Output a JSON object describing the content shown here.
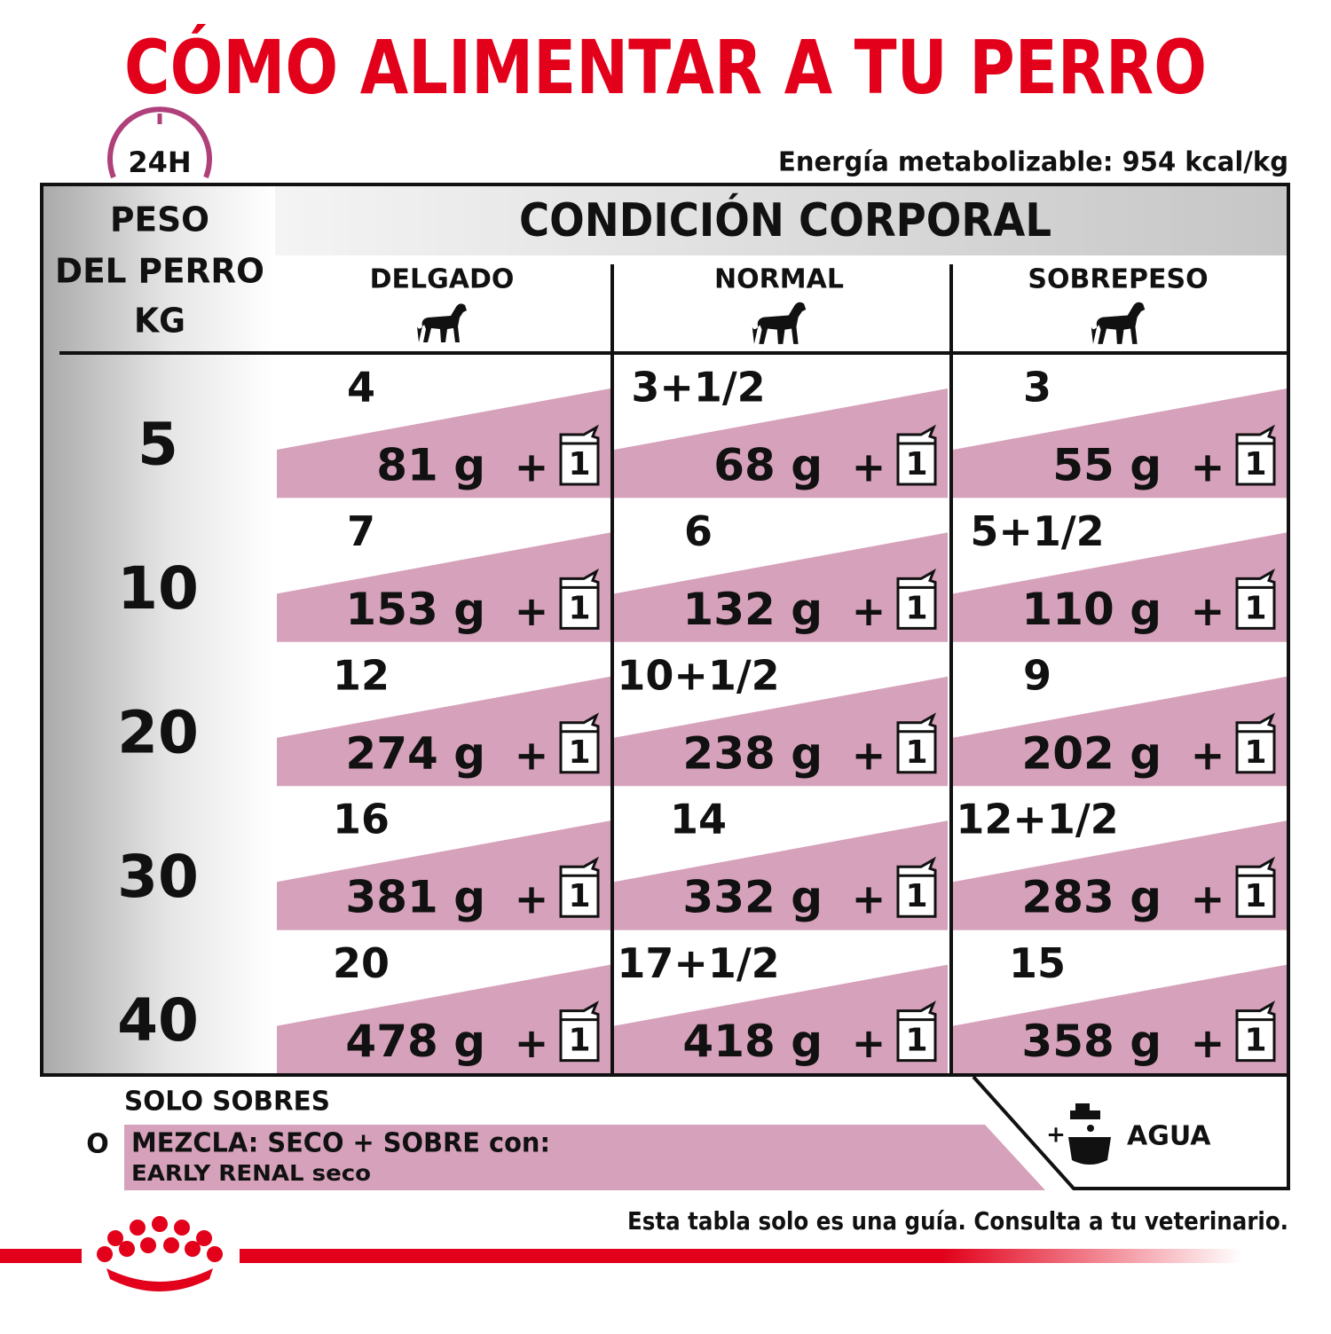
{
  "header": {
    "title": "CÓMO ALIMENTAR A TU PERRO",
    "badge": "24H",
    "energy": "Energía metabolizable: 954 kcal/kg"
  },
  "table": {
    "weight_header": [
      "PESO",
      "DEL PERRO",
      "KG"
    ],
    "condition_header": "CONDICIÓN CORPORAL",
    "columns": [
      "DELGADO",
      "NORMAL",
      "SOBREPESO"
    ],
    "plus": "+",
    "pouch_label": "1",
    "rows": [
      {
        "weight": "5",
        "cells": [
          {
            "pouches": "4",
            "dry": "81 g"
          },
          {
            "pouches": "3+1/2",
            "dry": "68 g"
          },
          {
            "pouches": "3",
            "dry": "55 g"
          }
        ]
      },
      {
        "weight": "10",
        "cells": [
          {
            "pouches": "7",
            "dry": "153 g"
          },
          {
            "pouches": "6",
            "dry": "132 g"
          },
          {
            "pouches": "5+1/2",
            "dry": "110 g"
          }
        ]
      },
      {
        "weight": "20",
        "cells": [
          {
            "pouches": "12",
            "dry": "274 g"
          },
          {
            "pouches": "10+1/2",
            "dry": "238 g"
          },
          {
            "pouches": "9",
            "dry": "202 g"
          }
        ]
      },
      {
        "weight": "30",
        "cells": [
          {
            "pouches": "16",
            "dry": "381 g"
          },
          {
            "pouches": "14",
            "dry": "332 g"
          },
          {
            "pouches": "12+1/2",
            "dry": "283 g"
          }
        ]
      },
      {
        "weight": "40",
        "cells": [
          {
            "pouches": "20",
            "dry": "478 g"
          },
          {
            "pouches": "17+1/2",
            "dry": "418 g"
          },
          {
            "pouches": "15",
            "dry": "358 g"
          }
        ]
      }
    ]
  },
  "legend": {
    "pouch_only": "SOLO SOBRES",
    "or": "O",
    "mix_line1": "MEZCLA: SECO + SOBRE con:",
    "mix_line2": "EARLY RENAL seco",
    "water_plus": "+",
    "water": "AGUA"
  },
  "footer": {
    "disclaimer": "Esta tabla solo es una guía. Consulta a tu veterinario."
  }
}
